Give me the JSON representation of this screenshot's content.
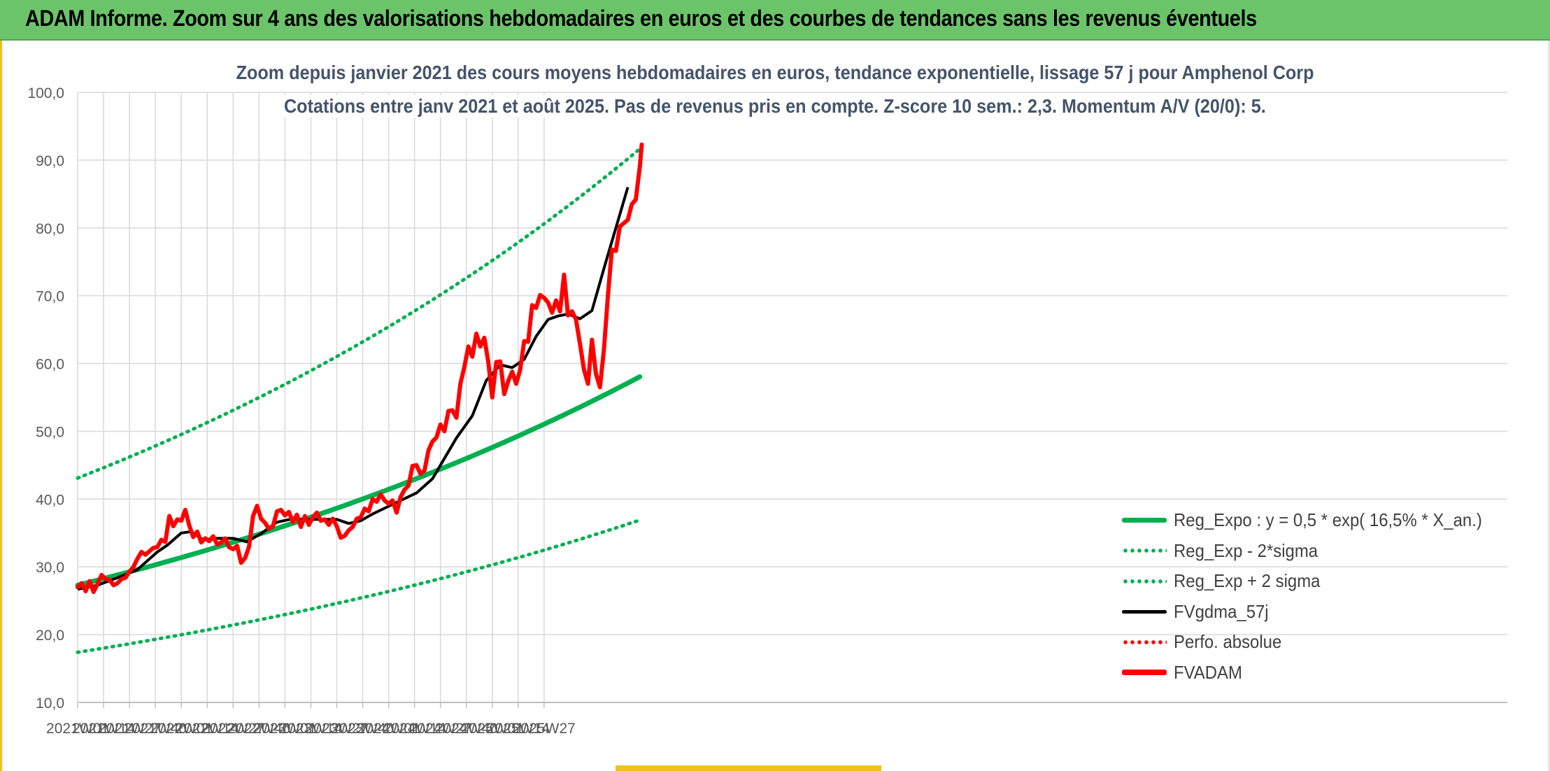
{
  "banner": {
    "title": "ADAM Informe. Zoom sur 4 ans des valorisations hebdomadaires en euros et des courbes de tendances sans les revenus éventuels"
  },
  "chart_data": {
    "type": "line",
    "title": "Zoom depuis janvier 2021 des cours moyens hebdomadaires en euros, tendance exponentielle, lissage 57 j pour Amphenol Corp",
    "subtitle": "Cotations entre janv 2021 et août 2025. Pas de revenus pris en compte. Z-score 10 sem.: 2,3. Momentum A/V (20/0): 5.",
    "xlabel": "",
    "ylabel": "",
    "ylim": [
      10,
      100
    ],
    "yticks": [
      "10,0",
      "20,0",
      "30,0",
      "40,0",
      "50,0",
      "60,0",
      "70,0",
      "80,0",
      "90,0",
      "100,0"
    ],
    "x_tick_labels": [
      "2021W01",
      "2021W14",
      "2021W27",
      "2021W40",
      "2022W01",
      "2022W14",
      "2022W27",
      "2022W40",
      "2023W01",
      "2023W14",
      "2023W27",
      "2023W40",
      "2024W01",
      "2024W14",
      "2024W27",
      "2024W40",
      "2025W01",
      "2025W14",
      "2025W27"
    ],
    "x_range_weeks": [
      0,
      241
    ],
    "grid": true,
    "legend_position": "bottom-right",
    "series": [
      {
        "name": "Reg_Expo : y = 0,5 * exp( 16,5% * X_an.)",
        "style": "solid",
        "color": "#00b050",
        "points": [
          [
            0,
            27.3
          ],
          [
            241,
            58.2
          ]
        ]
      },
      {
        "name": "Reg_Exp - 2*sigma",
        "style": "dotted",
        "color": "#00b050",
        "points": [
          [
            0,
            17.4
          ],
          [
            241,
            37.0
          ]
        ]
      },
      {
        "name": "Reg_Exp + 2 sigma",
        "style": "dotted",
        "color": "#00b050",
        "points": [
          [
            0,
            43.1
          ],
          [
            241,
            91.9
          ]
        ]
      },
      {
        "name": "FVgdma_57j",
        "style": "solid",
        "color": "#000000",
        "points": [
          [
            0,
            26.7
          ],
          [
            10,
            27.3
          ],
          [
            20,
            28.4
          ],
          [
            30,
            29.6
          ],
          [
            40,
            32.2
          ],
          [
            45,
            33.2
          ],
          [
            52,
            35.0
          ],
          [
            57,
            35.2
          ],
          [
            63,
            34.0
          ],
          [
            70,
            34.2
          ],
          [
            78,
            34.2
          ],
          [
            85,
            33.7
          ],
          [
            92,
            34.9
          ],
          [
            100,
            36.6
          ],
          [
            108,
            37.1
          ],
          [
            115,
            37.0
          ],
          [
            122,
            37.0
          ],
          [
            130,
            37.0
          ],
          [
            136,
            36.4
          ],
          [
            142,
            36.8
          ],
          [
            148,
            37.8
          ],
          [
            155,
            38.8
          ],
          [
            162,
            39.8
          ],
          [
            170,
            40.9
          ],
          [
            178,
            43.0
          ],
          [
            184,
            46.0
          ],
          [
            190,
            49.0
          ],
          [
            198,
            52.3
          ],
          [
            205,
            57.5
          ],
          [
            212,
            59.8
          ],
          [
            218,
            59.4
          ],
          [
            224,
            60.6
          ],
          [
            230,
            64.0
          ],
          [
            236,
            66.5
          ],
          [
            241,
            67.0
          ],
          [
            246,
            67.3
          ],
          [
            252,
            66.6
          ],
          [
            258,
            67.8
          ],
          [
            264,
            74.0
          ],
          [
            270,
            80.0
          ],
          [
            276,
            86.0
          ]
        ]
      },
      {
        "name": "Perfo. absolue",
        "style": "dotted",
        "color": "#ff0000",
        "points": []
      },
      {
        "name": "FVADAM",
        "style": "solid",
        "color": "#ff0000",
        "points": [
          [
            0,
            27.0
          ],
          [
            2,
            27.6
          ],
          [
            4,
            26.4
          ],
          [
            6,
            27.9
          ],
          [
            8,
            26.3
          ],
          [
            10,
            27.5
          ],
          [
            12,
            28.8
          ],
          [
            14,
            28.2
          ],
          [
            16,
            28.1
          ],
          [
            18,
            27.3
          ],
          [
            20,
            27.6
          ],
          [
            22,
            28.2
          ],
          [
            24,
            28.4
          ],
          [
            26,
            29.3
          ],
          [
            28,
            30.0
          ],
          [
            30,
            31.2
          ],
          [
            32,
            32.2
          ],
          [
            34,
            31.8
          ],
          [
            36,
            32.3
          ],
          [
            38,
            32.8
          ],
          [
            40,
            32.9
          ],
          [
            42,
            34.0
          ],
          [
            44,
            33.7
          ],
          [
            46,
            37.5
          ],
          [
            48,
            36.0
          ],
          [
            50,
            37.0
          ],
          [
            52,
            36.8
          ],
          [
            54,
            38.4
          ],
          [
            56,
            36.1
          ],
          [
            58,
            34.4
          ],
          [
            60,
            35.2
          ],
          [
            62,
            33.6
          ],
          [
            64,
            34.2
          ],
          [
            66,
            33.8
          ],
          [
            68,
            34.5
          ],
          [
            70,
            33.3
          ],
          [
            72,
            33.6
          ],
          [
            74,
            34.2
          ],
          [
            76,
            32.9
          ],
          [
            78,
            32.6
          ],
          [
            80,
            33.1
          ],
          [
            82,
            30.6
          ],
          [
            84,
            31.3
          ],
          [
            86,
            33.0
          ],
          [
            88,
            37.5
          ],
          [
            90,
            39.0
          ],
          [
            92,
            37.1
          ],
          [
            94,
            36.5
          ],
          [
            96,
            35.6
          ],
          [
            98,
            36.0
          ],
          [
            100,
            38.2
          ],
          [
            102,
            38.4
          ],
          [
            104,
            37.6
          ],
          [
            106,
            38.1
          ],
          [
            108,
            36.6
          ],
          [
            110,
            37.7
          ],
          [
            112,
            35.9
          ],
          [
            114,
            37.5
          ],
          [
            116,
            36.2
          ],
          [
            118,
            37.3
          ],
          [
            120,
            38.0
          ],
          [
            122,
            36.8
          ],
          [
            124,
            37.0
          ],
          [
            126,
            36.2
          ],
          [
            128,
            37.1
          ],
          [
            130,
            36.0
          ],
          [
            132,
            34.3
          ],
          [
            134,
            34.6
          ],
          [
            136,
            35.4
          ],
          [
            138,
            35.9
          ],
          [
            140,
            37.1
          ],
          [
            142,
            37.3
          ],
          [
            144,
            38.6
          ],
          [
            146,
            38.2
          ],
          [
            148,
            40.0
          ],
          [
            150,
            39.6
          ],
          [
            152,
            40.7
          ],
          [
            154,
            39.8
          ],
          [
            156,
            39.3
          ],
          [
            158,
            39.8
          ],
          [
            160,
            38.0
          ],
          [
            162,
            40.3
          ],
          [
            164,
            41.4
          ],
          [
            166,
            42.0
          ],
          [
            168,
            44.9
          ],
          [
            170,
            45.0
          ],
          [
            172,
            43.7
          ],
          [
            174,
            44.2
          ],
          [
            176,
            47.2
          ],
          [
            178,
            48.5
          ],
          [
            180,
            49.1
          ],
          [
            182,
            51.0
          ],
          [
            184,
            50.0
          ],
          [
            186,
            53.0
          ],
          [
            188,
            53.1
          ],
          [
            190,
            52.0
          ],
          [
            192,
            57.0
          ],
          [
            194,
            59.5
          ],
          [
            196,
            62.5
          ],
          [
            198,
            61.0
          ],
          [
            200,
            64.4
          ],
          [
            202,
            62.5
          ],
          [
            204,
            63.8
          ],
          [
            206,
            60.2
          ],
          [
            208,
            55.0
          ],
          [
            210,
            60.2
          ],
          [
            212,
            60.3
          ],
          [
            214,
            55.5
          ],
          [
            216,
            57.4
          ],
          [
            218,
            58.8
          ],
          [
            220,
            57.0
          ],
          [
            222,
            59.1
          ],
          [
            224,
            63.3
          ],
          [
            226,
            63.2
          ],
          [
            228,
            68.6
          ],
          [
            230,
            68.2
          ],
          [
            232,
            70.1
          ],
          [
            234,
            69.7
          ],
          [
            236,
            69.0
          ],
          [
            238,
            67.5
          ],
          [
            240,
            69.3
          ],
          [
            242,
            67.7
          ],
          [
            244,
            73.1
          ],
          [
            246,
            67.1
          ],
          [
            248,
            67.7
          ],
          [
            250,
            66.5
          ],
          [
            252,
            62.9
          ],
          [
            254,
            59.1
          ],
          [
            256,
            57.0
          ],
          [
            258,
            63.5
          ],
          [
            260,
            58.5
          ],
          [
            262,
            56.5
          ],
          [
            264,
            62.0
          ],
          [
            266,
            70.0
          ],
          [
            268,
            76.8
          ],
          [
            270,
            76.6
          ],
          [
            272,
            80.2
          ],
          [
            274,
            80.7
          ],
          [
            276,
            81.2
          ],
          [
            278,
            83.5
          ],
          [
            280,
            84.2
          ],
          [
            282,
            89.0
          ],
          [
            283,
            92.3
          ]
        ]
      }
    ]
  }
}
